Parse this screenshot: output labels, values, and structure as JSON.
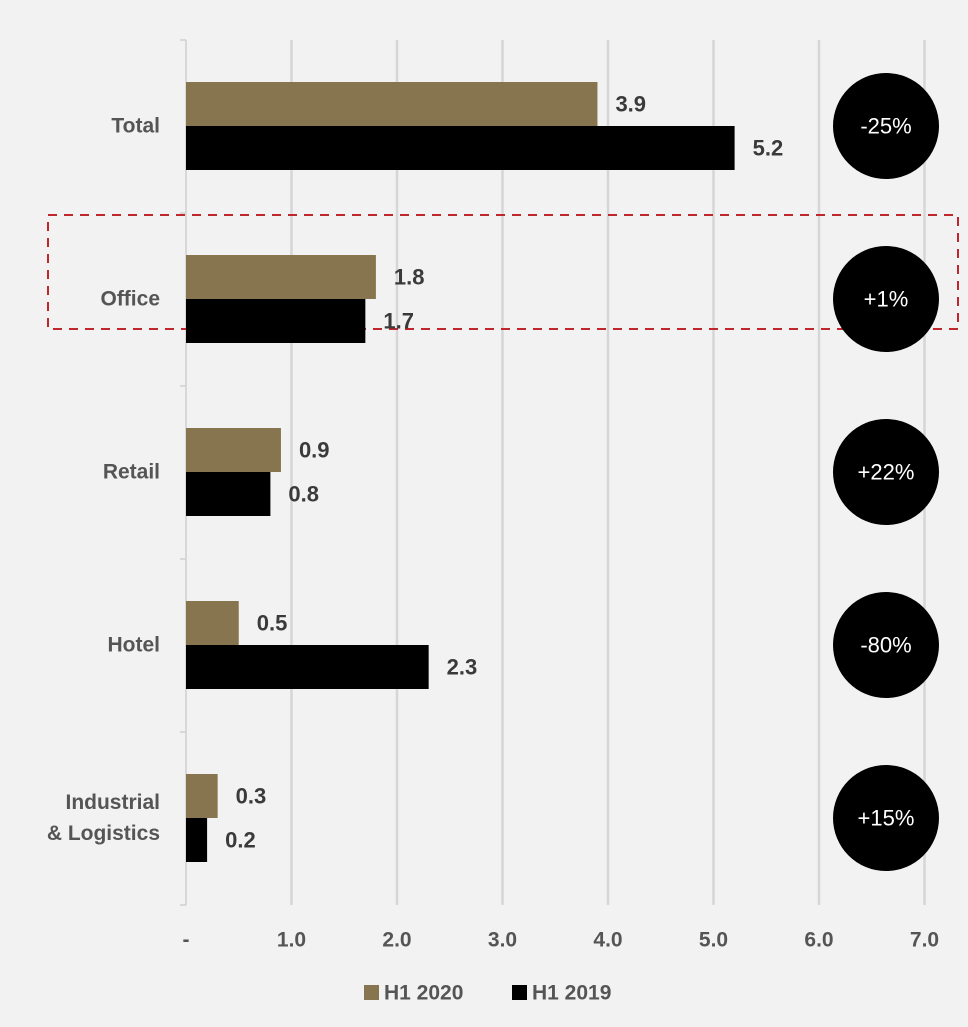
{
  "chart_data": {
    "type": "bar",
    "orientation": "horizontal",
    "categories": [
      "Total",
      "Office",
      "Retail",
      "Hotel",
      "Industrial\n& Logistics"
    ],
    "series": [
      {
        "name": "H1 2020",
        "color": "#86754f",
        "values": [
          3.9,
          1.8,
          0.9,
          0.5,
          0.3
        ]
      },
      {
        "name": "H1 2019",
        "color": "#000000",
        "values": [
          5.2,
          1.7,
          0.8,
          2.3,
          0.2
        ]
      }
    ],
    "data_labels": [
      [
        "3.9",
        "1.8",
        "0.9",
        "0.5",
        "0.3"
      ],
      [
        "5.2",
        "1.7",
        "0.8",
        "2.3",
        "0.2"
      ]
    ],
    "changes": [
      "-25%",
      "+1%",
      "+22%",
      "-80%",
      "+15%"
    ],
    "x_ticks": [
      {
        "value": 0,
        "label": "-"
      },
      {
        "value": 1,
        "label": "1.0"
      },
      {
        "value": 2,
        "label": "2.0"
      },
      {
        "value": 3,
        "label": "3.0"
      },
      {
        "value": 4,
        "label": "4.0"
      },
      {
        "value": 5,
        "label": "5.0"
      },
      {
        "value": 6,
        "label": "6.0"
      },
      {
        "value": 7,
        "label": "7.0"
      }
    ],
    "xlim": [
      0,
      7
    ],
    "grid": true,
    "legend_position": "bottom-center",
    "highlighted_category": "Office",
    "highlight_color": "#c0272d",
    "title": "",
    "xlabel": "",
    "ylabel": ""
  }
}
